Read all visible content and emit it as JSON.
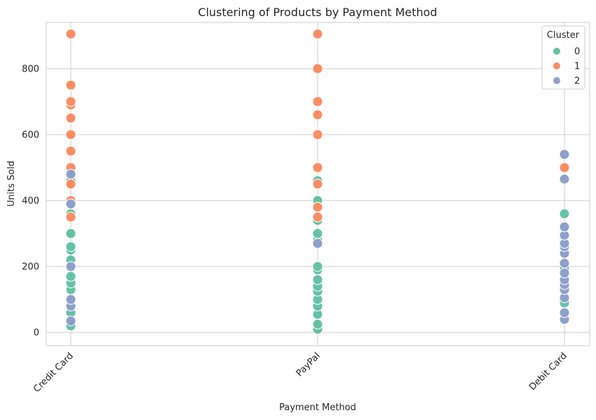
{
  "chart_data": {
    "type": "scatter",
    "title": "Clustering of Products by Payment Method",
    "xlabel": "Payment Method",
    "ylabel": "Units Sold",
    "categories": [
      "Credit Card",
      "PayPal",
      "Debit Card"
    ],
    "ylim": [
      -40,
      940
    ],
    "yticks": [
      0,
      200,
      400,
      600,
      800
    ],
    "grid": true,
    "legend": {
      "title": "Cluster",
      "placement": "top-right"
    },
    "series": [
      {
        "name": "0",
        "color": "#66c2a5",
        "points": [
          {
            "x": "Credit Card",
            "y": 20
          },
          {
            "x": "Credit Card",
            "y": 60
          },
          {
            "x": "Credit Card",
            "y": 130
          },
          {
            "x": "Credit Card",
            "y": 150
          },
          {
            "x": "Credit Card",
            "y": 170
          },
          {
            "x": "Credit Card",
            "y": 220
          },
          {
            "x": "Credit Card",
            "y": 250
          },
          {
            "x": "Credit Card",
            "y": 260
          },
          {
            "x": "Credit Card",
            "y": 300
          },
          {
            "x": "Credit Card",
            "y": 360
          },
          {
            "x": "Credit Card",
            "y": 460
          },
          {
            "x": "PayPal",
            "y": 10
          },
          {
            "x": "PayPal",
            "y": 25
          },
          {
            "x": "PayPal",
            "y": 55
          },
          {
            "x": "PayPal",
            "y": 80
          },
          {
            "x": "PayPal",
            "y": 100
          },
          {
            "x": "PayPal",
            "y": 125
          },
          {
            "x": "PayPal",
            "y": 140
          },
          {
            "x": "PayPal",
            "y": 160
          },
          {
            "x": "PayPal",
            "y": 190
          },
          {
            "x": "PayPal",
            "y": 200
          },
          {
            "x": "PayPal",
            "y": 280
          },
          {
            "x": "PayPal",
            "y": 300
          },
          {
            "x": "PayPal",
            "y": 340
          },
          {
            "x": "PayPal",
            "y": 400
          },
          {
            "x": "PayPal",
            "y": 460
          },
          {
            "x": "Debit Card",
            "y": 90
          },
          {
            "x": "Debit Card",
            "y": 195
          },
          {
            "x": "Debit Card",
            "y": 360
          }
        ]
      },
      {
        "name": "1",
        "color": "#fc8d62",
        "points": [
          {
            "x": "Credit Card",
            "y": 350
          },
          {
            "x": "Credit Card",
            "y": 400
          },
          {
            "x": "Credit Card",
            "y": 450
          },
          {
            "x": "Credit Card",
            "y": 500
          },
          {
            "x": "Credit Card",
            "y": 550
          },
          {
            "x": "Credit Card",
            "y": 600
          },
          {
            "x": "Credit Card",
            "y": 650
          },
          {
            "x": "Credit Card",
            "y": 690
          },
          {
            "x": "Credit Card",
            "y": 700
          },
          {
            "x": "Credit Card",
            "y": 750
          },
          {
            "x": "Credit Card",
            "y": 905
          },
          {
            "x": "PayPal",
            "y": 350
          },
          {
            "x": "PayPal",
            "y": 380
          },
          {
            "x": "PayPal",
            "y": 450
          },
          {
            "x": "PayPal",
            "y": 500
          },
          {
            "x": "PayPal",
            "y": 600
          },
          {
            "x": "PayPal",
            "y": 660
          },
          {
            "x": "PayPal",
            "y": 700
          },
          {
            "x": "PayPal",
            "y": 800
          },
          {
            "x": "PayPal",
            "y": 905
          },
          {
            "x": "Debit Card",
            "y": 500
          }
        ]
      },
      {
        "name": "2",
        "color": "#8da0cb",
        "points": [
          {
            "x": "Credit Card",
            "y": 35
          },
          {
            "x": "Credit Card",
            "y": 80
          },
          {
            "x": "Credit Card",
            "y": 100
          },
          {
            "x": "Credit Card",
            "y": 200
          },
          {
            "x": "Credit Card",
            "y": 390
          },
          {
            "x": "Credit Card",
            "y": 480
          },
          {
            "x": "PayPal",
            "y": 270
          },
          {
            "x": "Debit Card",
            "y": 40
          },
          {
            "x": "Debit Card",
            "y": 60
          },
          {
            "x": "Debit Card",
            "y": 105
          },
          {
            "x": "Debit Card",
            "y": 130
          },
          {
            "x": "Debit Card",
            "y": 145
          },
          {
            "x": "Debit Card",
            "y": 160
          },
          {
            "x": "Debit Card",
            "y": 180
          },
          {
            "x": "Debit Card",
            "y": 210
          },
          {
            "x": "Debit Card",
            "y": 240
          },
          {
            "x": "Debit Card",
            "y": 260
          },
          {
            "x": "Debit Card",
            "y": 270
          },
          {
            "x": "Debit Card",
            "y": 295
          },
          {
            "x": "Debit Card",
            "y": 320
          },
          {
            "x": "Debit Card",
            "y": 465
          },
          {
            "x": "Debit Card",
            "y": 540
          }
        ]
      }
    ]
  }
}
